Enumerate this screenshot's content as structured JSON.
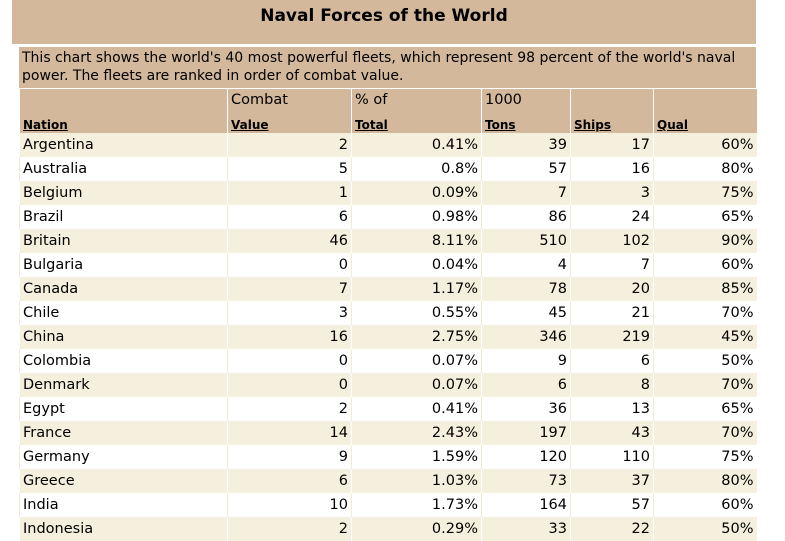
{
  "title": "Naval Forces of the World",
  "description": "This chart shows the world's 40 most powerful fleets, which represent 98 percent of the world's naval power. The fleets are ranked in order of combat value.",
  "header_top": [
    "",
    "Combat",
    "% of",
    "1000",
    "",
    ""
  ],
  "header_bottom": [
    "Nation",
    "Value",
    "Total",
    "Tons",
    "Ships",
    "Qual"
  ],
  "rows": [
    [
      "Argentina",
      "2",
      "0.41%",
      "39",
      "17",
      "60%"
    ],
    [
      "Australia",
      "5",
      "0.8%",
      "57",
      "16",
      "80%"
    ],
    [
      "Belgium",
      "1",
      "0.09%",
      "7",
      "3",
      "75%"
    ],
    [
      "Brazil",
      "6",
      "0.98%",
      "86",
      "24",
      "65%"
    ],
    [
      "Britain",
      "46",
      "8.11%",
      "510",
      "102",
      "90%"
    ],
    [
      "Bulgaria",
      "0",
      "0.04%",
      "4",
      "7",
      "60%"
    ],
    [
      "Canada",
      "7",
      "1.17%",
      "78",
      "20",
      "85%"
    ],
    [
      "Chile",
      "3",
      "0.55%",
      "45",
      "21",
      "70%"
    ],
    [
      "China",
      "16",
      "2.75%",
      "346",
      "219",
      "45%"
    ],
    [
      "Colombia",
      "0",
      "0.07%",
      "9",
      "6",
      "50%"
    ],
    [
      "Denmark",
      "0",
      "0.07%",
      "6",
      "8",
      "70%"
    ],
    [
      "Egypt",
      "2",
      "0.41%",
      "36",
      "13",
      "65%"
    ],
    [
      "France",
      "14",
      "2.43%",
      "197",
      "43",
      "70%"
    ],
    [
      "Germany",
      "9",
      "1.59%",
      "120",
      "110",
      "75%"
    ],
    [
      "Greece",
      "6",
      "1.03%",
      "73",
      "37",
      "80%"
    ],
    [
      "India",
      "10",
      "1.73%",
      "164",
      "57",
      "60%"
    ],
    [
      "Indonesia",
      "2",
      "0.29%",
      "33",
      "22",
      "50%"
    ]
  ]
}
